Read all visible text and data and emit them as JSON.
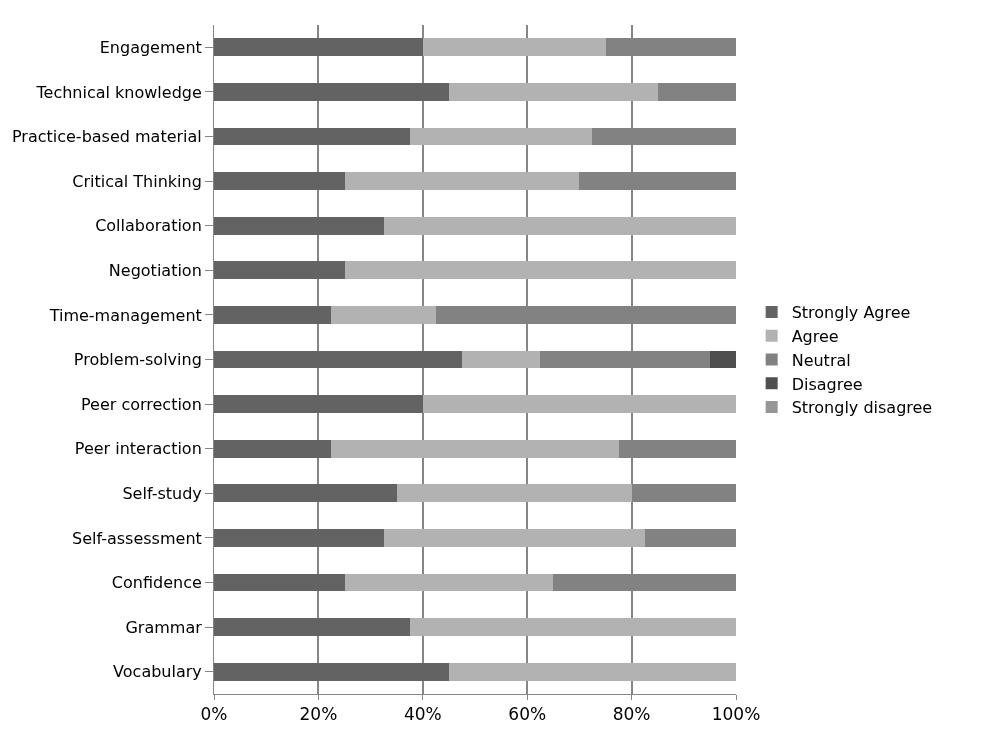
{
  "chart_data": {
    "type": "bar",
    "orientation": "horizontal",
    "stacked": true,
    "categories": [
      "Engagement",
      "Technical knowledge",
      "Practice-based material",
      "Critical Thinking",
      "Collaboration",
      "Negotiation",
      "Time-management",
      "Problem-solving",
      "Peer correction",
      "Peer interaction",
      "Self-study",
      "Self-assessment",
      "Confidence",
      "Grammar",
      "Vocabulary"
    ],
    "series": [
      {
        "name": "Strongly Agree",
        "color": "#636363",
        "values": [
          40,
          45,
          37.5,
          25,
          32.5,
          25,
          22.5,
          47.5,
          40,
          22.5,
          35,
          32.5,
          25,
          37.5,
          45
        ]
      },
      {
        "name": "Agree",
        "color": "#b2b2b2",
        "values": [
          35,
          40,
          35,
          45,
          67.5,
          75,
          20,
          15,
          60,
          55,
          45,
          50,
          40,
          62.5,
          55
        ]
      },
      {
        "name": "Neutral",
        "color": "#828282",
        "values": [
          25,
          15,
          27.5,
          30,
          0,
          0,
          57.5,
          32.5,
          0,
          22.5,
          20,
          17.5,
          35,
          0,
          0
        ]
      },
      {
        "name": "Disagree",
        "color": "#4f4f4f",
        "values": [
          0,
          0,
          0,
          0,
          0,
          0,
          0,
          5,
          0,
          0,
          0,
          0,
          0,
          0,
          0
        ]
      },
      {
        "name": "Strongly disagree",
        "color": "#969696",
        "values": [
          0,
          0,
          0,
          0,
          0,
          0,
          0,
          0,
          0,
          0,
          0,
          0,
          0,
          0,
          0
        ]
      }
    ],
    "xlim": [
      0,
      100
    ],
    "xticks": [
      {
        "value": 0,
        "label": "0%"
      },
      {
        "value": 20,
        "label": "20%"
      },
      {
        "value": 40,
        "label": "40%"
      },
      {
        "value": 60,
        "label": "60%"
      },
      {
        "value": 80,
        "label": "80%"
      },
      {
        "value": 100,
        "label": "100%"
      }
    ],
    "grid": "x",
    "legend": "right"
  }
}
